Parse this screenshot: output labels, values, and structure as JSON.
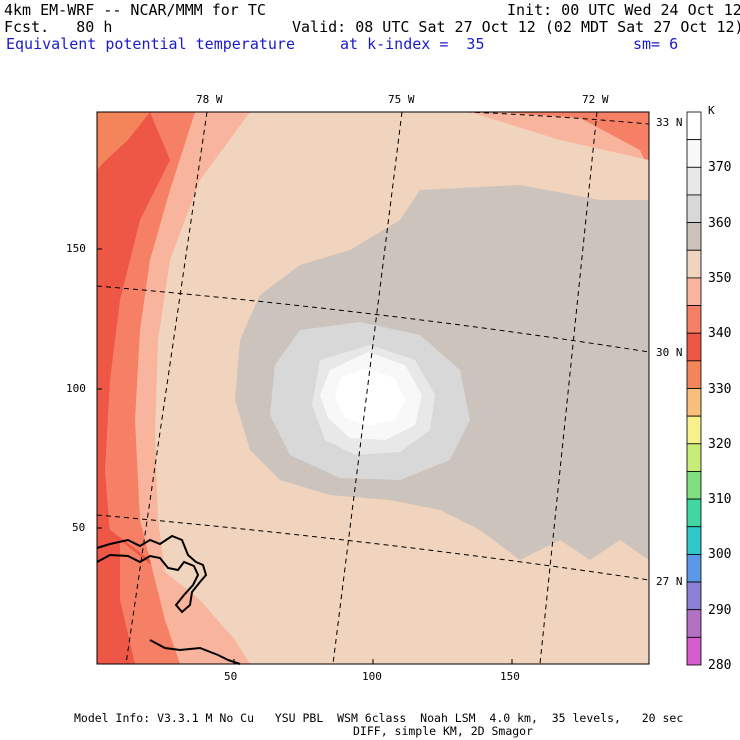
{
  "header": {
    "model": "4km EM-WRF -- NCAR/MMM for TC",
    "forecast": "Fcst.   80 h",
    "init": "Init: 00 UTC Wed 24 Oct 12",
    "valid": "Valid: 08 UTC Sat 27 Oct 12 (02 MDT Sat 27 Oct 12)",
    "field": "Equivalent potential temperature",
    "level": "at k-index =  35",
    "smoothing": "sm= 6"
  },
  "map": {
    "lon_labels": [
      "78 W",
      "75 W",
      "72 W"
    ],
    "lat_labels": [
      "33 N",
      "30 N",
      "27 N"
    ],
    "x_ticks": [
      "50",
      "100",
      "150"
    ],
    "y_ticks": [
      "150",
      "100",
      "50"
    ]
  },
  "colorbar": {
    "unit": "K",
    "labels": [
      "370",
      "360",
      "350",
      "340",
      "330",
      "320",
      "310",
      "300",
      "290",
      "280"
    ],
    "colors": [
      "#ffffff",
      "#f8f8f8",
      "#e8e8e8",
      "#d8d8d8",
      "#ccc4bc",
      "#f0d4bd",
      "#f8b49c",
      "#f58066",
      "#ee5646",
      "#f4845a",
      "#f8be7c",
      "#f8f08c",
      "#c8ec78",
      "#80e080",
      "#40d8a0",
      "#30c8c8",
      "#5c98e8",
      "#8c80d8",
      "#b470c4",
      "#d65cd0"
    ]
  },
  "footer": {
    "line1": "Model Info: V3.3.1 M No Cu   YSU PBL  WSM 6class  Noah LSM  4.0 km,  35 levels,   20 sec",
    "line2": "DIFF, simple KM, 2D Smagor"
  }
}
